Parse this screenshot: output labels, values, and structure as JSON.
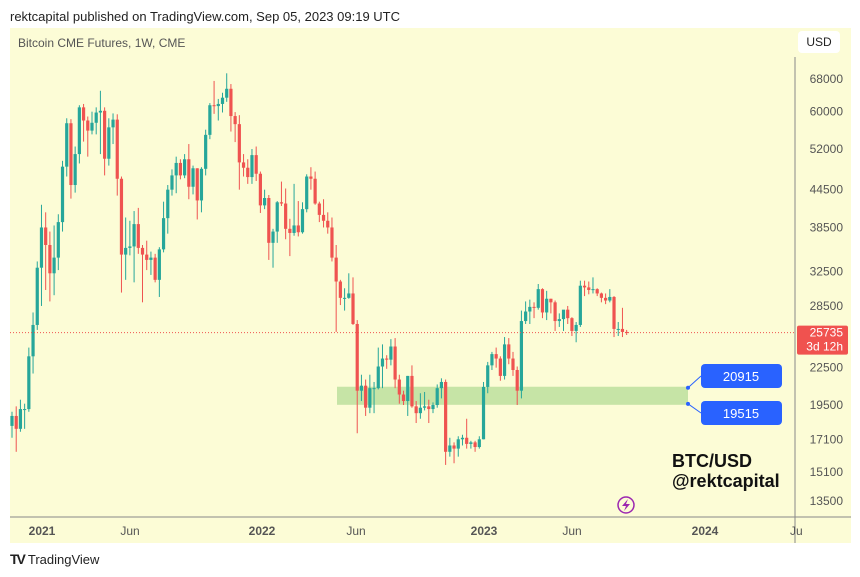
{
  "header": {
    "published": "rektcapital published on TradingView.com, Sep 05, 2023 09:19 UTC"
  },
  "chart_title": "Bitcoin CME Futures, 1W, CME",
  "currency_button": "USD",
  "watermark": {
    "line1": "BTC/USD",
    "line2": "@rektcapital"
  },
  "footer": {
    "logo": "TradingView"
  },
  "colors": {
    "up": "#26a69a",
    "down": "#ef5350",
    "zone": "#c6e4a6",
    "label": "#2962ff",
    "background": "#fcfcd6"
  },
  "chart_data": {
    "type": "candlestick",
    "title": "Bitcoin CME Futures, 1W, CME",
    "y_scale": "log",
    "ylim": [
      12500,
      72000
    ],
    "y_ticks": [
      68000,
      60000,
      52000,
      44500,
      38500,
      32500,
      28500,
      22500,
      19500,
      17100,
      15100,
      13500
    ],
    "x_ticks": [
      "2021",
      "Jun",
      "2022",
      "Jun",
      "2023",
      "Jun",
      "2024",
      "Ju"
    ],
    "current_price": {
      "value": "25735",
      "countdown": "3d 12h"
    },
    "zone": {
      "top": 20915,
      "bottom": 19515,
      "top_label": "20915",
      "bottom_label": "19515"
    },
    "candles_fields": [
      "week",
      "open",
      "high",
      "low",
      "close"
    ],
    "candles": [
      [
        "2020-11-16",
        18000,
        19000,
        17200,
        18700
      ],
      [
        "2020-11-23",
        18700,
        19400,
        16300,
        17800
      ],
      [
        "2020-11-30",
        17800,
        19900,
        17600,
        19200
      ],
      [
        "2020-12-07",
        19200,
        19600,
        17800,
        19200
      ],
      [
        "2020-12-14",
        19200,
        24300,
        19000,
        23500
      ],
      [
        "2020-12-21",
        23500,
        27800,
        22000,
        26500
      ],
      [
        "2020-12-28",
        26500,
        33800,
        26000,
        33000
      ],
      [
        "2021-01-04",
        33000,
        42000,
        28500,
        38500
      ],
      [
        "2021-01-11",
        38500,
        40800,
        30300,
        36000
      ],
      [
        "2021-01-18",
        36000,
        37900,
        29000,
        32300
      ],
      [
        "2021-01-25",
        32300,
        38800,
        29700,
        34300
      ],
      [
        "2021-02-01",
        34300,
        40500,
        32700,
        39300
      ],
      [
        "2021-02-08",
        39300,
        49700,
        37900,
        48600
      ],
      [
        "2021-02-15",
        48600,
        58500,
        46800,
        57400
      ],
      [
        "2021-02-22",
        57400,
        58300,
        43000,
        45300
      ],
      [
        "2021-03-01",
        45300,
        52500,
        44000,
        51000
      ],
      [
        "2021-03-08",
        51000,
        61500,
        49200,
        61000
      ],
      [
        "2021-03-15",
        61000,
        61800,
        53500,
        58000
      ],
      [
        "2021-03-22",
        58000,
        58900,
        50500,
        55800
      ],
      [
        "2021-03-29",
        55800,
        60000,
        55000,
        57500
      ],
      [
        "2021-04-05",
        57500,
        61000,
        55000,
        59800
      ],
      [
        "2021-04-12",
        59800,
        65000,
        51000,
        60200
      ],
      [
        "2021-04-19",
        60200,
        61000,
        47000,
        50100
      ],
      [
        "2021-04-26",
        50100,
        58500,
        48800,
        56500
      ],
      [
        "2021-05-03",
        56500,
        59600,
        53000,
        58200
      ],
      [
        "2021-05-10",
        58200,
        59400,
        43500,
        46400
      ],
      [
        "2021-05-17",
        46400,
        46800,
        30000,
        34700
      ],
      [
        "2021-05-24",
        34700,
        40000,
        31500,
        35600
      ],
      [
        "2021-05-31",
        35600,
        39500,
        34600,
        35800
      ],
      [
        "2021-06-07",
        35800,
        41000,
        31200,
        39000
      ],
      [
        "2021-06-14",
        39000,
        41500,
        34800,
        35600
      ],
      [
        "2021-06-21",
        35600,
        36000,
        28900,
        34700
      ],
      [
        "2021-06-28",
        34700,
        36600,
        32700,
        34000
      ],
      [
        "2021-07-05",
        34000,
        35100,
        32100,
        34300
      ],
      [
        "2021-07-12",
        34300,
        34800,
        31200,
        31500
      ],
      [
        "2021-07-19",
        31500,
        35700,
        29500,
        35400
      ],
      [
        "2021-07-26",
        35400,
        42500,
        35000,
        39900
      ],
      [
        "2021-08-02",
        39900,
        45300,
        37600,
        44500
      ],
      [
        "2021-08-09",
        44500,
        48100,
        43500,
        47000
      ],
      [
        "2021-08-16",
        47000,
        50500,
        43900,
        49300
      ],
      [
        "2021-08-23",
        49300,
        50000,
        46300,
        47000
      ],
      [
        "2021-08-30",
        47000,
        51000,
        46500,
        50000
      ],
      [
        "2021-09-06",
        50000,
        53000,
        42900,
        45000
      ],
      [
        "2021-09-13",
        45000,
        48800,
        43700,
        48300
      ],
      [
        "2021-09-20",
        48300,
        48300,
        39700,
        42700
      ],
      [
        "2021-09-27",
        42700,
        48500,
        40800,
        48200
      ],
      [
        "2021-10-04",
        48200,
        56000,
        47000,
        54900
      ],
      [
        "2021-10-11",
        54900,
        62000,
        54000,
        61500
      ],
      [
        "2021-10-18",
        61500,
        67500,
        59500,
        61300
      ],
      [
        "2021-10-25",
        61300,
        63000,
        58000,
        61800
      ],
      [
        "2021-11-01",
        61800,
        64500,
        59800,
        63300
      ],
      [
        "2021-11-08",
        63300,
        69500,
        62300,
        65500
      ],
      [
        "2021-11-15",
        65500,
        66700,
        55600,
        59000
      ],
      [
        "2021-11-22",
        59000,
        59900,
        53400,
        57200
      ],
      [
        "2021-11-29",
        57200,
        59200,
        44500,
        49400
      ],
      [
        "2021-12-06",
        49400,
        51000,
        46800,
        48400
      ],
      [
        "2021-12-13",
        48400,
        50000,
        45500,
        46700
      ],
      [
        "2021-12-20",
        46700,
        52000,
        45500,
        50800
      ],
      [
        "2021-12-27",
        50800,
        52500,
        46000,
        47300
      ],
      [
        "2022-01-03",
        47300,
        47700,
        40700,
        41900
      ],
      [
        "2022-01-10",
        41900,
        44500,
        41300,
        43100
      ],
      [
        "2022-01-17",
        43100,
        43600,
        34000,
        36300
      ],
      [
        "2022-01-24",
        36300,
        38300,
        33000,
        37900
      ],
      [
        "2022-01-31",
        37900,
        42600,
        36300,
        42400
      ],
      [
        "2022-02-07",
        42400,
        45900,
        41800,
        42200
      ],
      [
        "2022-02-14",
        42200,
        44700,
        36800,
        38300
      ],
      [
        "2022-02-21",
        38300,
        39800,
        34500,
        37700
      ],
      [
        "2022-02-28",
        37700,
        45500,
        37300,
        38800
      ],
      [
        "2022-03-07",
        38800,
        42600,
        37200,
        37800
      ],
      [
        "2022-03-14",
        37800,
        42400,
        37600,
        41300
      ],
      [
        "2022-03-21",
        41300,
        47200,
        40800,
        46800
      ],
      [
        "2022-03-28",
        46800,
        48500,
        44500,
        46400
      ],
      [
        "2022-04-04",
        46400,
        47700,
        42000,
        42200
      ],
      [
        "2022-04-11",
        42200,
        42500,
        39300,
        40400
      ],
      [
        "2022-04-18",
        40400,
        42900,
        38500,
        39500
      ],
      [
        "2022-04-25",
        39500,
        40800,
        37600,
        38500
      ],
      [
        "2022-05-02",
        38500,
        40000,
        33800,
        34300
      ],
      [
        "2022-05-09",
        34300,
        36000,
        25800,
        31300
      ],
      [
        "2022-05-16",
        31300,
        31500,
        28600,
        29400
      ],
      [
        "2022-05-23",
        29400,
        30500,
        28000,
        29400
      ],
      [
        "2022-05-30",
        29400,
        32300,
        29300,
        29900
      ],
      [
        "2022-06-06",
        29900,
        31800,
        26500,
        26600
      ],
      [
        "2022-06-13",
        26600,
        27000,
        17500,
        20600
      ],
      [
        "2022-06-20",
        20600,
        21900,
        19800,
        21000
      ],
      [
        "2022-06-27",
        21000,
        21500,
        18700,
        19300
      ],
      [
        "2022-07-04",
        19300,
        21900,
        18900,
        20800
      ],
      [
        "2022-07-11",
        20800,
        21300,
        18900,
        20800
      ],
      [
        "2022-07-18",
        20800,
        24300,
        20700,
        22600
      ],
      [
        "2022-07-25",
        22600,
        24600,
        20800,
        23300
      ],
      [
        "2022-08-01",
        23300,
        23600,
        22400,
        23200
      ],
      [
        "2022-08-08",
        23200,
        25100,
        22700,
        24400
      ],
      [
        "2022-08-15",
        24400,
        25200,
        20800,
        21500
      ],
      [
        "2022-08-22",
        21500,
        21900,
        19600,
        20300
      ],
      [
        "2022-08-29",
        20300,
        20600,
        19500,
        19800
      ],
      [
        "2022-09-05",
        19800,
        21800,
        18700,
        21800
      ],
      [
        "2022-09-12",
        21800,
        22700,
        19300,
        19400
      ],
      [
        "2022-09-19",
        19400,
        19800,
        18200,
        18900
      ],
      [
        "2022-09-26",
        18900,
        20400,
        18500,
        19300
      ],
      [
        "2022-10-03",
        19300,
        20500,
        19100,
        19400
      ],
      [
        "2022-10-10",
        19400,
        19900,
        18200,
        19200
      ],
      [
        "2022-10-17",
        19200,
        19700,
        18900,
        19500
      ],
      [
        "2022-10-24",
        19500,
        21100,
        19300,
        20800
      ],
      [
        "2022-10-31",
        20800,
        21600,
        20000,
        21300
      ],
      [
        "2022-11-07",
        21300,
        21500,
        15500,
        16300
      ],
      [
        "2022-11-14",
        16300,
        17200,
        16000,
        16700
      ],
      [
        "2022-11-21",
        16700,
        16900,
        15600,
        16500
      ],
      [
        "2022-11-28",
        16500,
        17300,
        16000,
        17100
      ],
      [
        "2022-12-05",
        17100,
        17400,
        16700,
        17200
      ],
      [
        "2022-12-12",
        17200,
        18500,
        16500,
        16800
      ],
      [
        "2022-12-19",
        16800,
        17000,
        16500,
        16900
      ],
      [
        "2022-12-26",
        16900,
        17000,
        16300,
        16600
      ],
      [
        "2023-01-02",
        16600,
        17300,
        16500,
        17100
      ],
      [
        "2023-01-09",
        17100,
        21300,
        17100,
        20900
      ],
      [
        "2023-01-16",
        20900,
        23000,
        20400,
        22700
      ],
      [
        "2023-01-23",
        22700,
        23900,
        22300,
        23700
      ],
      [
        "2023-01-30",
        23700,
        24300,
        22500,
        23300
      ],
      [
        "2023-02-06",
        23300,
        23500,
        21400,
        21800
      ],
      [
        "2023-02-13",
        21800,
        25300,
        21500,
        24600
      ],
      [
        "2023-02-20",
        24600,
        25200,
        22800,
        23300
      ],
      [
        "2023-02-27",
        23300,
        23900,
        21800,
        22300
      ],
      [
        "2023-03-06",
        22300,
        22600,
        19500,
        20600
      ],
      [
        "2023-03-13",
        20600,
        28000,
        20000,
        26900
      ],
      [
        "2023-03-20",
        26900,
        29000,
        26600,
        27900
      ],
      [
        "2023-03-27",
        27900,
        29200,
        26600,
        28400
      ],
      [
        "2023-04-03",
        28400,
        28900,
        27200,
        28300
      ],
      [
        "2023-04-10",
        28300,
        31000,
        28100,
        30400
      ],
      [
        "2023-04-17",
        30400,
        30500,
        27200,
        27800
      ],
      [
        "2023-04-24",
        27800,
        30200,
        27000,
        29300
      ],
      [
        "2023-05-01",
        29300,
        29300,
        27700,
        28900
      ],
      [
        "2023-05-08",
        28900,
        29100,
        25900,
        26900
      ],
      [
        "2023-05-15",
        26900,
        27700,
        26300,
        27100
      ],
      [
        "2023-05-22",
        27100,
        28000,
        25900,
        28100
      ],
      [
        "2023-05-29",
        28100,
        28500,
        26600,
        27200
      ],
      [
        "2023-06-05",
        27200,
        27300,
        25400,
        25900
      ],
      [
        "2023-06-12",
        25900,
        26800,
        24800,
        26500
      ],
      [
        "2023-06-19",
        26500,
        31400,
        26300,
        30800
      ],
      [
        "2023-06-26",
        30800,
        31400,
        29600,
        30600
      ],
      [
        "2023-07-03",
        30600,
        31300,
        29800,
        30300
      ],
      [
        "2023-07-10",
        30300,
        31800,
        29900,
        30400
      ],
      [
        "2023-07-17",
        30400,
        30500,
        29600,
        29900
      ],
      [
        "2023-07-24",
        29900,
        30000,
        28900,
        29400
      ],
      [
        "2023-07-31",
        29400,
        29900,
        28700,
        29100
      ],
      [
        "2023-08-07",
        29100,
        30400,
        28900,
        29500
      ],
      [
        "2023-08-14",
        29500,
        29600,
        25300,
        26100
      ],
      [
        "2023-08-21",
        26100,
        26800,
        25400,
        26100
      ],
      [
        "2023-08-28",
        26100,
        28300,
        25300,
        25800
      ],
      [
        "2023-09-04",
        25800,
        26000,
        25500,
        25735
      ]
    ]
  }
}
